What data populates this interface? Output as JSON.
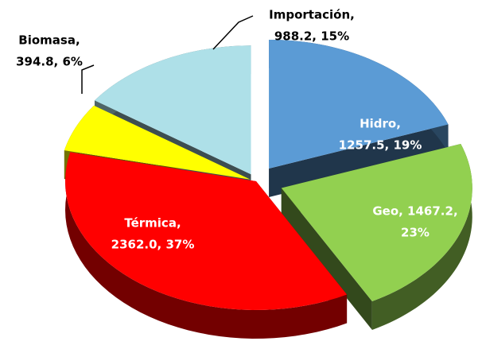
{
  "chart_data": {
    "type": "pie3d",
    "categories": [
      "Hidro",
      "Geo",
      "Térmica",
      "Biomasa",
      "Importación"
    ],
    "values": [
      1257.5,
      1467.2,
      2362.0,
      394.8,
      988.2
    ],
    "percents": [
      19,
      23,
      37,
      6,
      15
    ],
    "labels": [
      [
        "Hidro,",
        "1257.5, 19%"
      ],
      [
        "Geo, 1467.2,",
        "23%"
      ],
      [
        "Térmica,",
        "2362.0, 37%"
      ],
      [
        "Biomasa,",
        "394.8, 6%"
      ],
      [
        "Importación,",
        "988.2, 15%"
      ]
    ],
    "colors": [
      "#5b9bd5",
      "#92d050",
      "#ff0000",
      "#ffff00",
      "#aee0e8"
    ]
  }
}
